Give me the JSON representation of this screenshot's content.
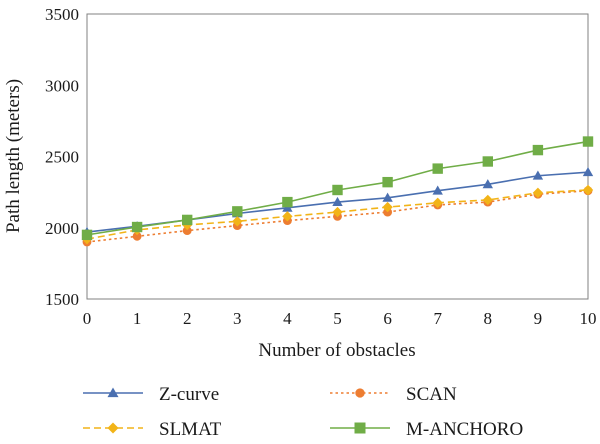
{
  "chart_data": {
    "type": "line",
    "xlabel": "Number of obstacles",
    "ylabel": "Path length (meters)",
    "x": [
      0,
      1,
      2,
      3,
      4,
      5,
      6,
      7,
      8,
      9,
      10
    ],
    "xlim": [
      0,
      10
    ],
    "ylim": [
      1500,
      3500
    ],
    "yticks": [
      1500,
      2000,
      2500,
      3000,
      3500
    ],
    "xticks": [
      0,
      1,
      2,
      3,
      4,
      5,
      6,
      7,
      8,
      9,
      10
    ],
    "grid": false,
    "legend_position": "bottom",
    "series": [
      {
        "name": "Z-curve",
        "values": [
          1970,
          2010,
          2055,
          2100,
          2140,
          2180,
          2210,
          2260,
          2305,
          2365,
          2390
        ],
        "color": "#4a6fb0",
        "marker": "triangle",
        "line": "solid"
      },
      {
        "name": "SCAN",
        "values": [
          1900,
          1940,
          1980,
          2015,
          2050,
          2080,
          2110,
          2160,
          2180,
          2235,
          2260
        ],
        "color": "#ed7d31",
        "marker": "circle",
        "line": "dotted"
      },
      {
        "name": "SLMAT",
        "values": [
          1920,
          1985,
          2020,
          2045,
          2080,
          2110,
          2145,
          2175,
          2195,
          2245,
          2265
        ],
        "color": "#f2b418",
        "marker": "diamond",
        "line": "dashed"
      },
      {
        "name": "M-ANCHORO",
        "values": [
          1950,
          2005,
          2055,
          2115,
          2180,
          2265,
          2320,
          2415,
          2465,
          2545,
          2605
        ],
        "color": "#70ad47",
        "marker": "square",
        "line": "solid"
      }
    ]
  }
}
